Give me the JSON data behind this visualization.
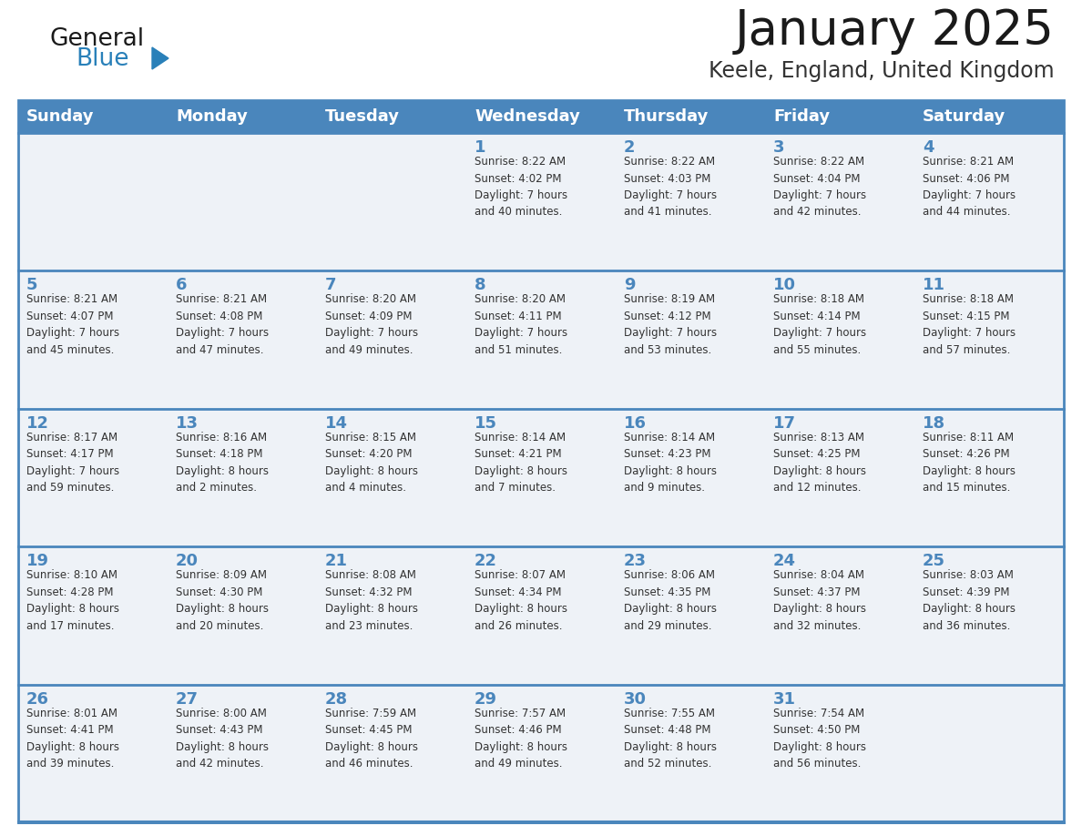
{
  "title": "January 2025",
  "subtitle": "Keele, England, United Kingdom",
  "header_bg": "#4a86bc",
  "header_text_color": "#ffffff",
  "cell_bg": "#eef2f7",
  "border_color": "#4a86bc",
  "row_separator_color": "#4a86bc",
  "day_names": [
    "Sunday",
    "Monday",
    "Tuesday",
    "Wednesday",
    "Thursday",
    "Friday",
    "Saturday"
  ],
  "title_color": "#1a1a1a",
  "subtitle_color": "#333333",
  "day_num_color": "#4a86bc",
  "cell_text_color": "#333333",
  "logo_general_color": "#1a1a1a",
  "logo_blue_color": "#2980b9",
  "logo_triangle_color": "#2980b9",
  "calendar": [
    [
      {
        "day": "",
        "text": ""
      },
      {
        "day": "",
        "text": ""
      },
      {
        "day": "",
        "text": ""
      },
      {
        "day": "1",
        "text": "Sunrise: 8:22 AM\nSunset: 4:02 PM\nDaylight: 7 hours\nand 40 minutes."
      },
      {
        "day": "2",
        "text": "Sunrise: 8:22 AM\nSunset: 4:03 PM\nDaylight: 7 hours\nand 41 minutes."
      },
      {
        "day": "3",
        "text": "Sunrise: 8:22 AM\nSunset: 4:04 PM\nDaylight: 7 hours\nand 42 minutes."
      },
      {
        "day": "4",
        "text": "Sunrise: 8:21 AM\nSunset: 4:06 PM\nDaylight: 7 hours\nand 44 minutes."
      }
    ],
    [
      {
        "day": "5",
        "text": "Sunrise: 8:21 AM\nSunset: 4:07 PM\nDaylight: 7 hours\nand 45 minutes."
      },
      {
        "day": "6",
        "text": "Sunrise: 8:21 AM\nSunset: 4:08 PM\nDaylight: 7 hours\nand 47 minutes."
      },
      {
        "day": "7",
        "text": "Sunrise: 8:20 AM\nSunset: 4:09 PM\nDaylight: 7 hours\nand 49 minutes."
      },
      {
        "day": "8",
        "text": "Sunrise: 8:20 AM\nSunset: 4:11 PM\nDaylight: 7 hours\nand 51 minutes."
      },
      {
        "day": "9",
        "text": "Sunrise: 8:19 AM\nSunset: 4:12 PM\nDaylight: 7 hours\nand 53 minutes."
      },
      {
        "day": "10",
        "text": "Sunrise: 8:18 AM\nSunset: 4:14 PM\nDaylight: 7 hours\nand 55 minutes."
      },
      {
        "day": "11",
        "text": "Sunrise: 8:18 AM\nSunset: 4:15 PM\nDaylight: 7 hours\nand 57 minutes."
      }
    ],
    [
      {
        "day": "12",
        "text": "Sunrise: 8:17 AM\nSunset: 4:17 PM\nDaylight: 7 hours\nand 59 minutes."
      },
      {
        "day": "13",
        "text": "Sunrise: 8:16 AM\nSunset: 4:18 PM\nDaylight: 8 hours\nand 2 minutes."
      },
      {
        "day": "14",
        "text": "Sunrise: 8:15 AM\nSunset: 4:20 PM\nDaylight: 8 hours\nand 4 minutes."
      },
      {
        "day": "15",
        "text": "Sunrise: 8:14 AM\nSunset: 4:21 PM\nDaylight: 8 hours\nand 7 minutes."
      },
      {
        "day": "16",
        "text": "Sunrise: 8:14 AM\nSunset: 4:23 PM\nDaylight: 8 hours\nand 9 minutes."
      },
      {
        "day": "17",
        "text": "Sunrise: 8:13 AM\nSunset: 4:25 PM\nDaylight: 8 hours\nand 12 minutes."
      },
      {
        "day": "18",
        "text": "Sunrise: 8:11 AM\nSunset: 4:26 PM\nDaylight: 8 hours\nand 15 minutes."
      }
    ],
    [
      {
        "day": "19",
        "text": "Sunrise: 8:10 AM\nSunset: 4:28 PM\nDaylight: 8 hours\nand 17 minutes."
      },
      {
        "day": "20",
        "text": "Sunrise: 8:09 AM\nSunset: 4:30 PM\nDaylight: 8 hours\nand 20 minutes."
      },
      {
        "day": "21",
        "text": "Sunrise: 8:08 AM\nSunset: 4:32 PM\nDaylight: 8 hours\nand 23 minutes."
      },
      {
        "day": "22",
        "text": "Sunrise: 8:07 AM\nSunset: 4:34 PM\nDaylight: 8 hours\nand 26 minutes."
      },
      {
        "day": "23",
        "text": "Sunrise: 8:06 AM\nSunset: 4:35 PM\nDaylight: 8 hours\nand 29 minutes."
      },
      {
        "day": "24",
        "text": "Sunrise: 8:04 AM\nSunset: 4:37 PM\nDaylight: 8 hours\nand 32 minutes."
      },
      {
        "day": "25",
        "text": "Sunrise: 8:03 AM\nSunset: 4:39 PM\nDaylight: 8 hours\nand 36 minutes."
      }
    ],
    [
      {
        "day": "26",
        "text": "Sunrise: 8:01 AM\nSunset: 4:41 PM\nDaylight: 8 hours\nand 39 minutes."
      },
      {
        "day": "27",
        "text": "Sunrise: 8:00 AM\nSunset: 4:43 PM\nDaylight: 8 hours\nand 42 minutes."
      },
      {
        "day": "28",
        "text": "Sunrise: 7:59 AM\nSunset: 4:45 PM\nDaylight: 8 hours\nand 46 minutes."
      },
      {
        "day": "29",
        "text": "Sunrise: 7:57 AM\nSunset: 4:46 PM\nDaylight: 8 hours\nand 49 minutes."
      },
      {
        "day": "30",
        "text": "Sunrise: 7:55 AM\nSunset: 4:48 PM\nDaylight: 8 hours\nand 52 minutes."
      },
      {
        "day": "31",
        "text": "Sunrise: 7:54 AM\nSunset: 4:50 PM\nDaylight: 8 hours\nand 56 minutes."
      },
      {
        "day": "",
        "text": ""
      }
    ]
  ]
}
